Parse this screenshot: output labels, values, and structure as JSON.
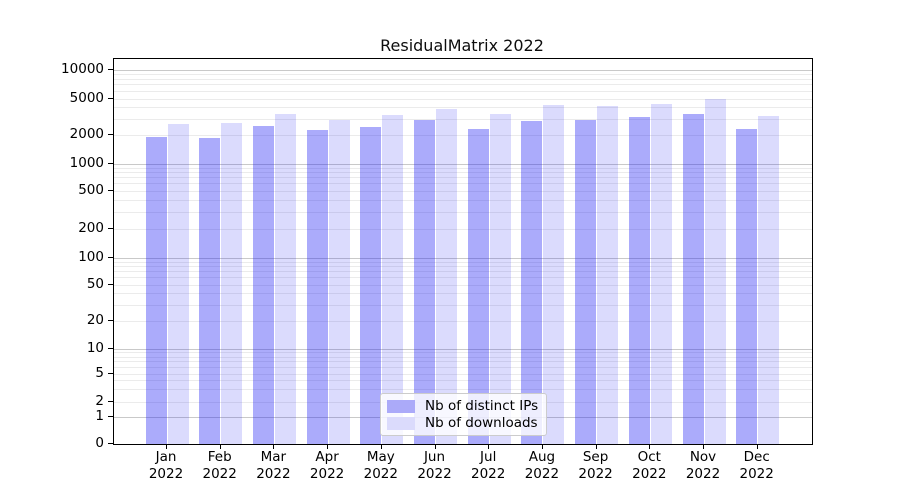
{
  "chart_data": {
    "type": "bar",
    "title": "ResidualMatrix 2022",
    "categories": [
      "Jan\n2022",
      "Feb\n2022",
      "Mar\n2022",
      "Apr\n2022",
      "May\n2022",
      "Jun\n2022",
      "Jul\n2022",
      "Aug\n2022",
      "Sep\n2022",
      "Oct\n2022",
      "Nov\n2022",
      "Dec\n2022"
    ],
    "series": [
      {
        "name": "Nb of distinct IPs",
        "values": [
          1900,
          1850,
          2500,
          2300,
          2450,
          2950,
          2350,
          2850,
          2950,
          3150,
          3400,
          2350
        ],
        "fill": "rgba(34,34,244,0.38)",
        "legend_color": "#abaaf9"
      },
      {
        "name": "Nb of downloads",
        "values": [
          2650,
          2700,
          3400,
          2950,
          3300,
          3850,
          3400,
          4250,
          4150,
          4450,
          5050,
          3250
        ],
        "fill": "rgba(34,34,244,0.16)",
        "legend_color": "#dbdbfc"
      }
    ],
    "yscale": "symlog",
    "yticks": [
      0,
      1,
      2,
      5,
      10,
      20,
      50,
      100,
      200,
      500,
      1000,
      2000,
      5000,
      10000
    ],
    "ylim": [
      0,
      13000
    ],
    "xlabel": "",
    "ylabel": "",
    "grid": "horizontal, major and minor",
    "legend_position": "lower center inside axes",
    "colors": {
      "grid_major": "#c9c9c9",
      "grid_minor": "#ebebeb",
      "spine": "#000000",
      "background": "#ffffff",
      "text": "#000000"
    }
  }
}
